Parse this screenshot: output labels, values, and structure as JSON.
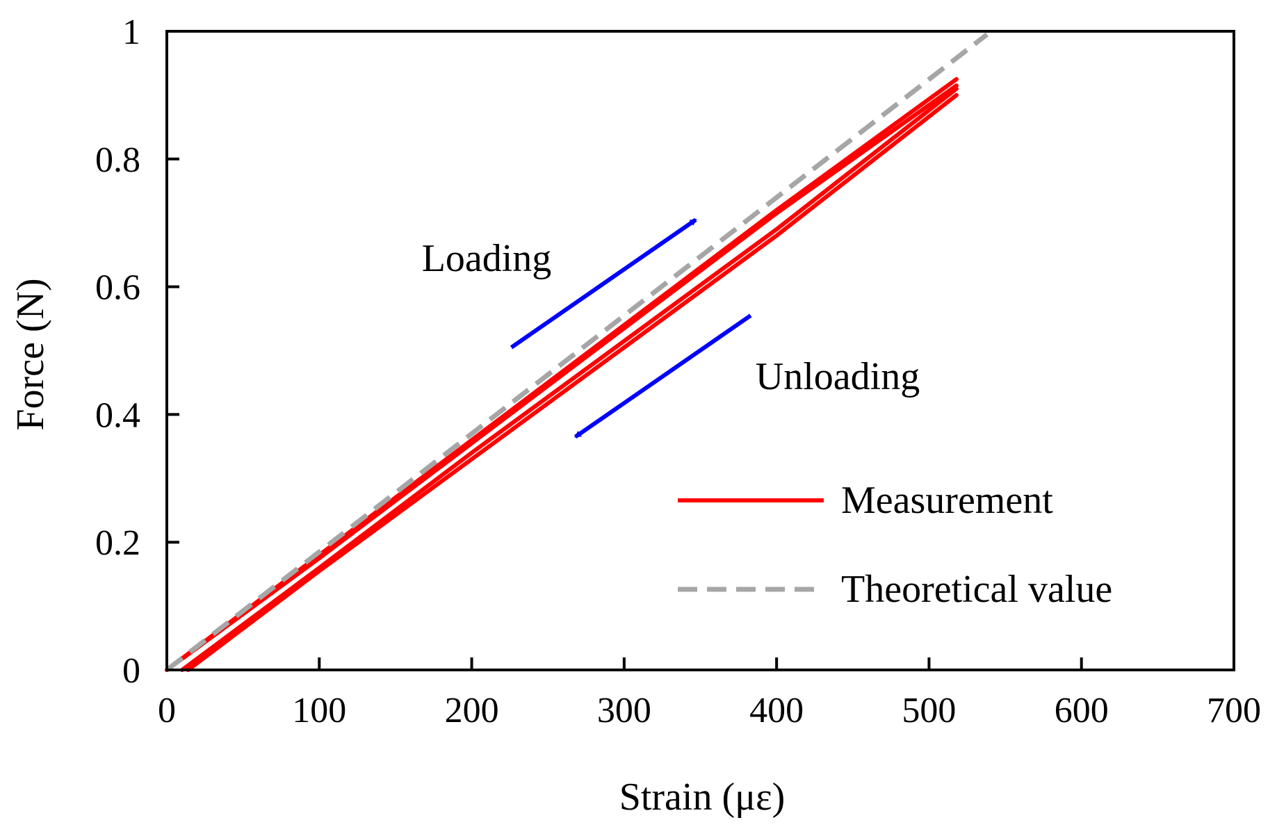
{
  "chart_data": {
    "type": "line",
    "title": "",
    "xlabel": "Strain (με)",
    "ylabel": "Force (N)",
    "xlim": [
      0,
      700
    ],
    "ylim": [
      0,
      1
    ],
    "xticks": [
      0,
      100,
      200,
      300,
      400,
      500,
      600,
      700
    ],
    "yticks": [
      0,
      0.2,
      0.4,
      0.6,
      0.8,
      1
    ],
    "xtick_labels": [
      "0",
      "100",
      "200",
      "300",
      "400",
      "500",
      "600",
      "700"
    ],
    "ytick_labels": [
      "0",
      "0.2",
      "0.4",
      "0.6",
      "0.8",
      "1"
    ],
    "grid": false,
    "legend_position": "bottom-right",
    "series": [
      {
        "name": "Measurement",
        "color": "#ff0000",
        "style": "solid",
        "loops": [
          {
            "loading": {
              "x": [
                0,
                100,
                200,
                300,
                400,
                518
              ],
              "y": [
                0,
                0.18,
                0.36,
                0.54,
                0.72,
                0.925
              ]
            },
            "unloading": {
              "x": [
                518,
                400,
                300,
                200,
                100,
                10
              ],
              "y": [
                0.91,
                0.69,
                0.515,
                0.34,
                0.16,
                0
              ]
            }
          },
          {
            "loading": {
              "x": [
                0,
                100,
                200,
                300,
                400,
                518
              ],
              "y": [
                0,
                0.175,
                0.355,
                0.535,
                0.715,
                0.915
              ]
            },
            "unloading": {
              "x": [
                518,
                400,
                300,
                200,
                100,
                14
              ],
              "y": [
                0.9,
                0.68,
                0.505,
                0.33,
                0.155,
                0
              ]
            }
          }
        ]
      },
      {
        "name": "Theoretical value",
        "color": "#a6a6a6",
        "style": "dashed",
        "x": [
          0,
          538
        ],
        "y": [
          0,
          0.995
        ]
      }
    ],
    "annotations": [
      {
        "text": "Loading",
        "arrow_from": [
          226,
          0.505
        ],
        "arrow_to": [
          347,
          0.705
        ],
        "arrow_color": "#0000ff"
      },
      {
        "text": "Unloading",
        "arrow_from": [
          383,
          0.555
        ],
        "arrow_to": [
          268,
          0.365
        ],
        "arrow_color": "#0000ff"
      }
    ]
  }
}
